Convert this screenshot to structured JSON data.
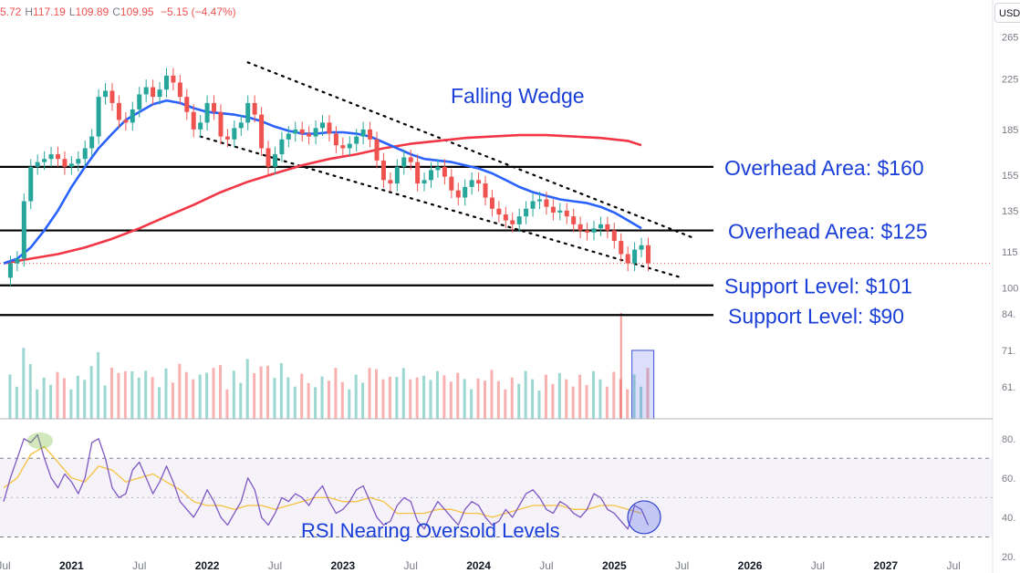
{
  "header": {
    "open": "5.72",
    "high_label": "H",
    "high": "117.19",
    "low_label": "L",
    "low": "109.89",
    "close_label": "C",
    "close": "109.95",
    "change": "−5.15 (−4.47%)",
    "currency": "USD"
  },
  "colors": {
    "up": "#26a69a",
    "down": "#ef5350",
    "ma50": "#2962ff",
    "ma200": "#f23645",
    "annotation": "#1a3fd8",
    "rsi": "#7e57c2",
    "rsi_ma": "#f5c242"
  },
  "chart_data": [
    {
      "type": "line",
      "panel": "price",
      "price_scale": "log",
      "ylim": [
        95,
        275
      ],
      "y_ticks": [
        "265",
        "225",
        "185",
        "155",
        "135",
        "115",
        "100"
      ],
      "x_ticks": [
        "Jul",
        "2021",
        "Jul",
        "2022",
        "Jul",
        "2023",
        "Jul",
        "2024",
        "Jul",
        "2025",
        "Jul",
        "2026",
        "Jul",
        "2027",
        "Jul"
      ],
      "x_tick_dates": [
        2020.5,
        2021.0,
        2021.5,
        2022.0,
        2022.5,
        2023.0,
        2023.5,
        2024.0,
        2024.5,
        2025.0,
        2025.5,
        2026.0,
        2026.5,
        2027.0,
        2027.5
      ],
      "xlim": [
        2020.5,
        2027.6
      ],
      "series": [
        {
          "role": "price",
          "x": [
            2020.5,
            2020.55,
            2020.6,
            2020.65,
            2020.7,
            2020.75,
            2020.8,
            2020.85,
            2020.9,
            2020.95,
            2021.0,
            2021.05,
            2021.1,
            2021.15,
            2021.2,
            2021.25,
            2021.3,
            2021.35,
            2021.4,
            2021.45,
            2021.5,
            2021.55,
            2021.6,
            2021.65,
            2021.7,
            2021.75,
            2021.8,
            2021.85,
            2021.9,
            2021.95,
            2022.0,
            2022.05,
            2022.1,
            2022.15,
            2022.2,
            2022.25,
            2022.3,
            2022.35,
            2022.4,
            2022.45,
            2022.5,
            2022.55,
            2022.6,
            2022.65,
            2022.7,
            2022.75,
            2022.8,
            2022.85,
            2022.9,
            2022.95,
            2023.0,
            2023.05,
            2023.1,
            2023.15,
            2023.2,
            2023.25,
            2023.3,
            2023.35,
            2023.4,
            2023.45,
            2023.5,
            2023.55,
            2023.6,
            2023.65,
            2023.7,
            2023.75,
            2023.8,
            2023.85,
            2023.9,
            2023.95,
            2024.0,
            2024.05,
            2024.1,
            2024.15,
            2024.2,
            2024.25,
            2024.3,
            2024.35,
            2024.4,
            2024.45,
            2024.5,
            2024.55,
            2024.6,
            2024.65,
            2024.7,
            2024.75,
            2024.8,
            2024.85,
            2024.9,
            2024.95,
            2025.0,
            2025.05,
            2025.1,
            2025.15,
            2025.2,
            2025.25
          ],
          "values": [
            104,
            110,
            112,
            140,
            160,
            163,
            165,
            168,
            165,
            160,
            162,
            165,
            172,
            180,
            210,
            215,
            205,
            192,
            190,
            200,
            212,
            218,
            210,
            216,
            228,
            222,
            210,
            198,
            185,
            190,
            205,
            198,
            180,
            178,
            186,
            190,
            205,
            196,
            172,
            160,
            168,
            178,
            182,
            185,
            182,
            180,
            186,
            190,
            182,
            174,
            172,
            175,
            180,
            185,
            178,
            164,
            152,
            150,
            160,
            166,
            163,
            150,
            152,
            158,
            160,
            154,
            146,
            142,
            148,
            152,
            150,
            142,
            136,
            133,
            130,
            128,
            132,
            136,
            140,
            141,
            137,
            134,
            135,
            132,
            128,
            125,
            124,
            126,
            128,
            125,
            120,
            114,
            110,
            116,
            118,
            110
          ]
        },
        {
          "role": "ma50",
          "x": [
            2020.5,
            2020.6,
            2020.7,
            2020.8,
            2020.9,
            2021.0,
            2021.1,
            2021.2,
            2021.3,
            2021.4,
            2021.5,
            2021.6,
            2021.7,
            2021.8,
            2021.9,
            2022.0,
            2022.1,
            2022.2,
            2022.3,
            2022.4,
            2022.5,
            2022.6,
            2022.7,
            2022.8,
            2022.9,
            2023.0,
            2023.1,
            2023.2,
            2023.3,
            2023.4,
            2023.5,
            2023.6,
            2023.7,
            2023.8,
            2023.9,
            2024.0,
            2024.1,
            2024.2,
            2024.3,
            2024.4,
            2024.5,
            2024.6,
            2024.7,
            2024.8,
            2024.9,
            2025.0,
            2025.1,
            2025.2
          ],
          "values": [
            110,
            112,
            117,
            125,
            135,
            148,
            160,
            172,
            182,
            192,
            198,
            204,
            207,
            205,
            201,
            198,
            197,
            196,
            194,
            191,
            187,
            184,
            182,
            182,
            183,
            183,
            182,
            180,
            176,
            172,
            168,
            165,
            164,
            163,
            161,
            159,
            156,
            152,
            148,
            145,
            143,
            141,
            140,
            139,
            137,
            134,
            130,
            126
          ]
        },
        {
          "role": "ma200",
          "x": [
            2020.5,
            2020.7,
            2020.9,
            2021.1,
            2021.3,
            2021.5,
            2021.7,
            2021.9,
            2022.1,
            2022.3,
            2022.5,
            2022.7,
            2022.9,
            2023.1,
            2023.3,
            2023.5,
            2023.7,
            2023.9,
            2024.1,
            2024.3,
            2024.5,
            2024.7,
            2024.9,
            2025.1,
            2025.2
          ],
          "values": [
            110,
            112,
            114,
            117,
            121,
            126,
            132,
            138,
            145,
            151,
            156,
            161,
            165,
            168,
            172,
            175,
            177,
            179,
            180,
            181,
            181,
            180,
            179,
            177,
            174
          ]
        }
      ],
      "lines": [
        {
          "value": 160,
          "label": "Overhead Area: $160"
        },
        {
          "value": 125,
          "label": "Overhead Area: $125"
        },
        {
          "value": 101,
          "label": "Support Level: $101"
        },
        {
          "value": 90,
          "label": "Support Level: $90"
        }
      ],
      "annotations": [
        {
          "text": "Falling Wedge"
        }
      ],
      "wedge": {
        "upper": {
          "x": [
            2022.3,
            2025.6
          ],
          "values": [
            240,
            121
          ]
        },
        "lower": {
          "x": [
            2021.95,
            2025.5
          ],
          "values": [
            180,
            104
          ]
        }
      }
    },
    {
      "type": "bar",
      "panel": "volume",
      "y_ticks": [
        "84.",
        "71.",
        "61."
      ],
      "values_info": "relative volume, daily bars (estimated)",
      "spike_at": 2025.05,
      "legend": "top-right"
    },
    {
      "type": "line",
      "panel": "rsi",
      "ylim": [
        20,
        85
      ],
      "y_ticks": [
        "80.",
        "60.",
        "40.",
        "20."
      ],
      "bands": [
        30,
        70
      ],
      "middle": 50,
      "series": [
        {
          "role": "rsi",
          "x": [
            2020.5,
            2020.55,
            2020.6,
            2020.65,
            2020.7,
            2020.75,
            2020.8,
            2020.85,
            2020.9,
            2020.95,
            2021.0,
            2021.05,
            2021.1,
            2021.15,
            2021.2,
            2021.25,
            2021.3,
            2021.35,
            2021.4,
            2021.45,
            2021.5,
            2021.55,
            2021.6,
            2021.65,
            2021.7,
            2021.75,
            2021.8,
            2021.85,
            2021.9,
            2021.95,
            2022.0,
            2022.05,
            2022.1,
            2022.15,
            2022.2,
            2022.25,
            2022.3,
            2022.35,
            2022.4,
            2022.45,
            2022.5,
            2022.55,
            2022.6,
            2022.65,
            2022.7,
            2022.75,
            2022.8,
            2022.85,
            2022.9,
            2022.95,
            2023.0,
            2023.05,
            2023.1,
            2023.15,
            2023.2,
            2023.25,
            2023.3,
            2023.35,
            2023.4,
            2023.45,
            2023.5,
            2023.55,
            2023.6,
            2023.65,
            2023.7,
            2023.75,
            2023.8,
            2023.85,
            2023.9,
            2023.95,
            2024.0,
            2024.05,
            2024.1,
            2024.15,
            2024.2,
            2024.25,
            2024.3,
            2024.35,
            2024.4,
            2024.45,
            2024.5,
            2024.55,
            2024.6,
            2024.65,
            2024.7,
            2024.75,
            2024.8,
            2024.85,
            2024.9,
            2024.95,
            2025.0,
            2025.05,
            2025.1,
            2025.15,
            2025.2,
            2025.25
          ],
          "values": [
            48,
            60,
            70,
            80,
            78,
            82,
            70,
            60,
            55,
            62,
            58,
            52,
            60,
            78,
            80,
            70,
            55,
            50,
            52,
            64,
            68,
            60,
            52,
            58,
            66,
            58,
            48,
            44,
            40,
            46,
            54,
            48,
            40,
            36,
            42,
            48,
            60,
            54,
            40,
            36,
            42,
            50,
            48,
            52,
            50,
            46,
            52,
            56,
            48,
            42,
            44,
            48,
            54,
            56,
            48,
            40,
            36,
            38,
            46,
            50,
            48,
            38,
            34,
            42,
            48,
            44,
            40,
            36,
            44,
            48,
            46,
            40,
            36,
            38,
            44,
            40,
            46,
            52,
            54,
            50,
            44,
            42,
            48,
            46,
            42,
            40,
            44,
            52,
            50,
            44,
            42,
            38,
            34,
            46,
            44,
            36
          ]
        },
        {
          "role": "rsi_ma",
          "x": [
            2020.5,
            2020.6,
            2020.7,
            2020.8,
            2020.9,
            2021.0,
            2021.1,
            2021.2,
            2021.3,
            2021.4,
            2021.5,
            2021.6,
            2021.7,
            2021.8,
            2021.9,
            2022.0,
            2022.1,
            2022.2,
            2022.3,
            2022.4,
            2022.5,
            2022.6,
            2022.7,
            2022.8,
            2022.9,
            2023.0,
            2023.1,
            2023.2,
            2023.3,
            2023.4,
            2023.5,
            2023.6,
            2023.7,
            2023.8,
            2023.9,
            2024.0,
            2024.1,
            2024.2,
            2024.3,
            2024.4,
            2024.5,
            2024.6,
            2024.7,
            2024.8,
            2024.9,
            2025.0,
            2025.1,
            2025.2
          ],
          "values": [
            55,
            60,
            72,
            76,
            68,
            60,
            58,
            66,
            64,
            58,
            60,
            62,
            58,
            54,
            48,
            46,
            46,
            44,
            46,
            46,
            44,
            46,
            48,
            50,
            50,
            48,
            48,
            50,
            48,
            42,
            42,
            42,
            44,
            44,
            42,
            42,
            40,
            42,
            44,
            46,
            46,
            46,
            44,
            44,
            46,
            46,
            44,
            42
          ]
        }
      ],
      "annotations": [
        {
          "text": "RSI Nearing Oversold Levels"
        }
      ]
    }
  ]
}
